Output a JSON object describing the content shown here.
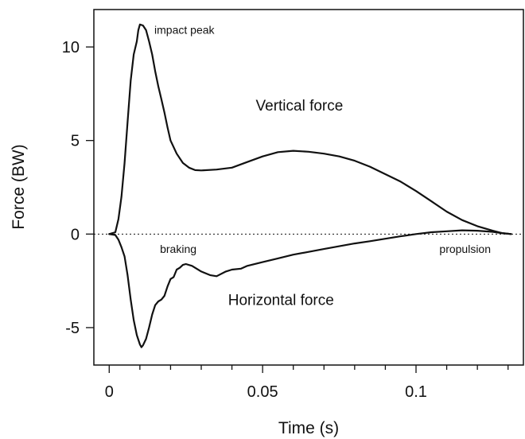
{
  "chart_data": {
    "type": "line",
    "xlabel": "Time (s)",
    "ylabel": "Force (BW)",
    "xlim": [
      -0.005,
      0.135
    ],
    "ylim": [
      -7,
      12
    ],
    "x_ticks": [
      {
        "value": 0,
        "label": "0"
      },
      {
        "value": 0.05,
        "label": "0.05"
      },
      {
        "value": 0.1,
        "label": "0.1"
      }
    ],
    "x_minor_step": 0.01,
    "y_ticks": [
      {
        "value": -5,
        "label": "-5"
      },
      {
        "value": 0,
        "label": "0"
      },
      {
        "value": 5,
        "label": "5"
      },
      {
        "value": 10,
        "label": "10"
      }
    ],
    "grid": false,
    "zero_line": "dotted",
    "series": [
      {
        "points": [
          [
            0,
            0
          ],
          [
            0.002,
            0.1
          ],
          [
            0.003,
            0.8
          ],
          [
            0.004,
            2.0
          ],
          [
            0.005,
            3.8
          ],
          [
            0.006,
            6.0
          ],
          [
            0.007,
            8.2
          ],
          [
            0.008,
            9.6
          ],
          [
            0.009,
            10.3
          ],
          [
            0.0095,
            10.9
          ],
          [
            0.01,
            11.2
          ],
          [
            0.011,
            11.15
          ],
          [
            0.012,
            10.9
          ],
          [
            0.013,
            10.3
          ],
          [
            0.014,
            9.6
          ],
          [
            0.015,
            8.7
          ],
          [
            0.016,
            7.9
          ],
          [
            0.017,
            7.2
          ],
          [
            0.018,
            6.5
          ],
          [
            0.019,
            5.7
          ],
          [
            0.02,
            5.0
          ],
          [
            0.022,
            4.3
          ],
          [
            0.024,
            3.8
          ],
          [
            0.026,
            3.55
          ],
          [
            0.028,
            3.42
          ],
          [
            0.03,
            3.4
          ],
          [
            0.035,
            3.45
          ],
          [
            0.04,
            3.55
          ],
          [
            0.045,
            3.85
          ],
          [
            0.05,
            4.15
          ],
          [
            0.055,
            4.38
          ],
          [
            0.06,
            4.45
          ],
          [
            0.065,
            4.4
          ],
          [
            0.07,
            4.3
          ],
          [
            0.075,
            4.15
          ],
          [
            0.08,
            3.92
          ],
          [
            0.085,
            3.6
          ],
          [
            0.09,
            3.2
          ],
          [
            0.095,
            2.8
          ],
          [
            0.1,
            2.3
          ],
          [
            0.105,
            1.75
          ],
          [
            0.11,
            1.2
          ],
          [
            0.115,
            0.75
          ],
          [
            0.12,
            0.42
          ],
          [
            0.125,
            0.18
          ],
          [
            0.128,
            0.05
          ],
          [
            0.131,
            0
          ]
        ]
      },
      {
        "points": [
          [
            0,
            0
          ],
          [
            0.002,
            -0.05
          ],
          [
            0.003,
            -0.3
          ],
          [
            0.004,
            -0.7
          ],
          [
            0.005,
            -1.2
          ],
          [
            0.006,
            -2.2
          ],
          [
            0.007,
            -3.5
          ],
          [
            0.008,
            -4.6
          ],
          [
            0.009,
            -5.4
          ],
          [
            0.01,
            -5.9
          ],
          [
            0.0105,
            -6.05
          ],
          [
            0.011,
            -5.95
          ],
          [
            0.012,
            -5.6
          ],
          [
            0.013,
            -5.0
          ],
          [
            0.014,
            -4.3
          ],
          [
            0.015,
            -3.8
          ],
          [
            0.016,
            -3.6
          ],
          [
            0.017,
            -3.5
          ],
          [
            0.018,
            -3.3
          ],
          [
            0.019,
            -2.8
          ],
          [
            0.02,
            -2.4
          ],
          [
            0.021,
            -2.3
          ],
          [
            0.022,
            -1.9
          ],
          [
            0.023,
            -1.8
          ],
          [
            0.024,
            -1.65
          ],
          [
            0.025,
            -1.6
          ],
          [
            0.027,
            -1.7
          ],
          [
            0.03,
            -2.0
          ],
          [
            0.033,
            -2.2
          ],
          [
            0.035,
            -2.25
          ],
          [
            0.038,
            -2.0
          ],
          [
            0.04,
            -1.9
          ],
          [
            0.043,
            -1.85
          ],
          [
            0.045,
            -1.7
          ],
          [
            0.05,
            -1.5
          ],
          [
            0.055,
            -1.3
          ],
          [
            0.06,
            -1.1
          ],
          [
            0.065,
            -0.95
          ],
          [
            0.07,
            -0.8
          ],
          [
            0.075,
            -0.65
          ],
          [
            0.08,
            -0.5
          ],
          [
            0.085,
            -0.38
          ],
          [
            0.09,
            -0.25
          ],
          [
            0.095,
            -0.12
          ],
          [
            0.1,
            0
          ],
          [
            0.105,
            0.1
          ],
          [
            0.11,
            0.15
          ],
          [
            0.115,
            0.2
          ],
          [
            0.12,
            0.18
          ],
          [
            0.125,
            0.12
          ],
          [
            0.128,
            0.05
          ],
          [
            0.131,
            0
          ]
        ]
      }
    ],
    "annotations": [
      {
        "text": "impact peak",
        "x": 0.0245,
        "y": 10.7,
        "style": "small"
      },
      {
        "text": "Vertical force",
        "x": 0.062,
        "y": 6.6,
        "style": "large"
      },
      {
        "text": "braking",
        "x": 0.0225,
        "y": -1.0,
        "style": "small"
      },
      {
        "text": "propulsion",
        "x": 0.116,
        "y": -1.0,
        "style": "small"
      },
      {
        "text": "Horizontal force",
        "x": 0.056,
        "y": -3.8,
        "style": "large"
      }
    ]
  }
}
